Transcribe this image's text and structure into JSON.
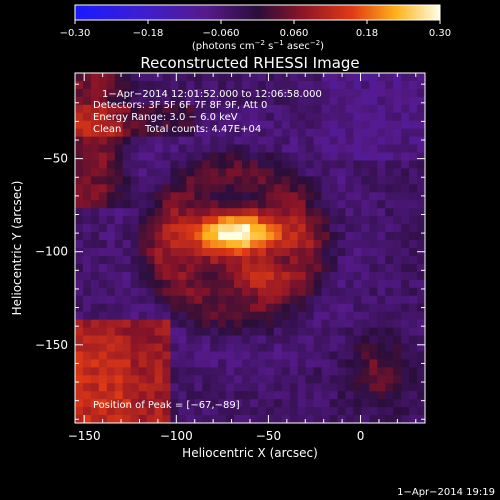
{
  "chart_data": {
    "type": "heatmap",
    "title": "Reconstructed RHESSI Image",
    "xlabel": "Heliocentric X (arcsec)",
    "ylabel": "Heliocentric Y (arcsec)",
    "xlim": [
      -155,
      35
    ],
    "ylim": [
      -192,
      -4
    ],
    "x_ticks": [
      -150,
      -100,
      -50,
      0
    ],
    "y_ticks": [
      -150,
      -100,
      -50
    ],
    "x_tick_labels": [
      "−150",
      "−100",
      "−50",
      "0"
    ],
    "y_tick_labels": [
      "−150",
      "−100",
      "−50"
    ],
    "colorbar": {
      "min": -0.3,
      "max": 0.3,
      "ticks": [
        -0.3,
        -0.18,
        -0.06,
        0.06,
        0.18,
        0.3
      ],
      "tick_labels": [
        "−0.30",
        "−0.18",
        "−0.060",
        "0.060",
        "0.18",
        "0.30"
      ],
      "unit_label": "(photons cm",
      "unit_parts": [
        "(photons cm",
        "−2",
        " s",
        "−1",
        " asec",
        "−2",
        ")"
      ]
    },
    "annotations": {
      "time_range": "1−Apr−2014 12:01:52.000 to 12:06:58.000",
      "detectors": "Detectors: 3F 5F 6F 7F 8F 9F, Att 0",
      "energy": "Energy Range: 3.0 − 6.0 keV",
      "clean": "Clean",
      "counts": "Total counts: 4.47E+04",
      "peak": "Position of Peak = [−67,−89]"
    },
    "peak": {
      "x": -67,
      "y": -89
    },
    "sources": [
      {
        "x": -67,
        "y": -89,
        "sx": 20,
        "sy": 8,
        "amp": 0.3
      },
      {
        "x": -72,
        "y": -103,
        "sx": 24,
        "sy": 12,
        "amp": 0.09
      },
      {
        "x": -55,
        "y": -115,
        "sx": 12,
        "sy": 6,
        "amp": 0.1
      }
    ],
    "regions": [
      {
        "label": "lower-left",
        "x": -140,
        "y": -165,
        "level": 0.12
      },
      {
        "label": "upper-left",
        "x": -140,
        "y": -40,
        "level": 0.1
      }
    ]
  },
  "footer": {
    "timestamp": "1−Apr−2014 19:19"
  }
}
